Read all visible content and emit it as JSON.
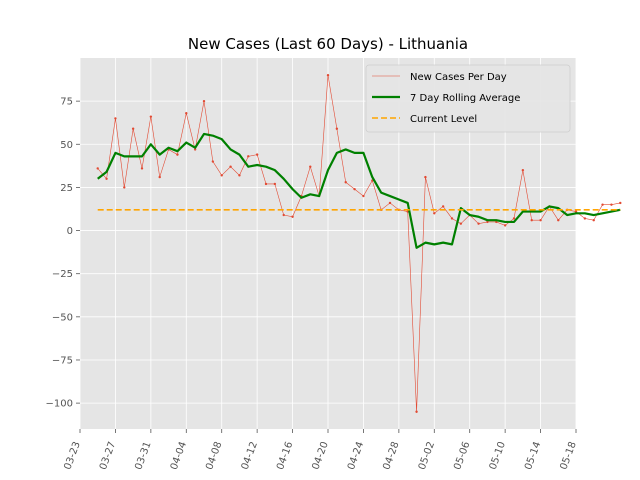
{
  "chart_data": {
    "type": "line",
    "title": "New Cases (Last 60 Days) - Lithuania",
    "xlabel": "",
    "ylabel": "",
    "x_start": "03-25",
    "xlim": [
      "03-23",
      "05-18"
    ],
    "ylim": [
      -115,
      100
    ],
    "x_ticks": [
      "03-23",
      "03-27",
      "03-31",
      "04-04",
      "04-08",
      "04-12",
      "04-16",
      "04-20",
      "04-24",
      "04-28",
      "05-02",
      "05-06",
      "05-10",
      "05-14",
      "05-18"
    ],
    "y_ticks": [
      -100,
      -75,
      -50,
      -25,
      0,
      25,
      50,
      75
    ],
    "y_tick_labels": [
      "−100",
      "−75",
      "−50",
      "−25",
      "0",
      "25",
      "50",
      "75"
    ],
    "grid": true,
    "legend_position": "top-right",
    "series": [
      {
        "name": "New Cases Per Day",
        "color": "#e24a33",
        "style": "thin-line-with-markers",
        "values": [
          36,
          30,
          65,
          25,
          59,
          36,
          66,
          31,
          47,
          44,
          68,
          47,
          75,
          40,
          32,
          37,
          32,
          43,
          44,
          27,
          27,
          9,
          8,
          20,
          37,
          20,
          90,
          59,
          28,
          24,
          20,
          29,
          12,
          16,
          12,
          11,
          -105,
          31,
          10,
          14,
          7,
          4,
          9,
          4,
          5,
          5,
          3,
          7,
          35,
          6,
          6,
          14,
          6,
          12,
          11,
          7,
          6,
          15,
          15,
          16
        ]
      },
      {
        "name": "7 Day Rolling Average",
        "color": "#008000",
        "style": "thick-line",
        "values": [
          30,
          34,
          45,
          43,
          43,
          43,
          50,
          44,
          48,
          46,
          51,
          48,
          56,
          55,
          53,
          47,
          44,
          37,
          38,
          37,
          35,
          30,
          24,
          19,
          21,
          20,
          35,
          45,
          47,
          45,
          45,
          31,
          22,
          20,
          18,
          16,
          -10,
          -7,
          -8,
          -7,
          -8,
          13,
          9,
          8,
          6,
          6,
          5,
          5,
          11,
          11,
          11,
          14,
          13,
          9,
          10,
          10,
          9,
          10,
          11,
          12
        ]
      },
      {
        "name": "Current Level",
        "color": "#ffa500",
        "style": "dashed",
        "values": [
          12,
          12
        ]
      }
    ]
  }
}
